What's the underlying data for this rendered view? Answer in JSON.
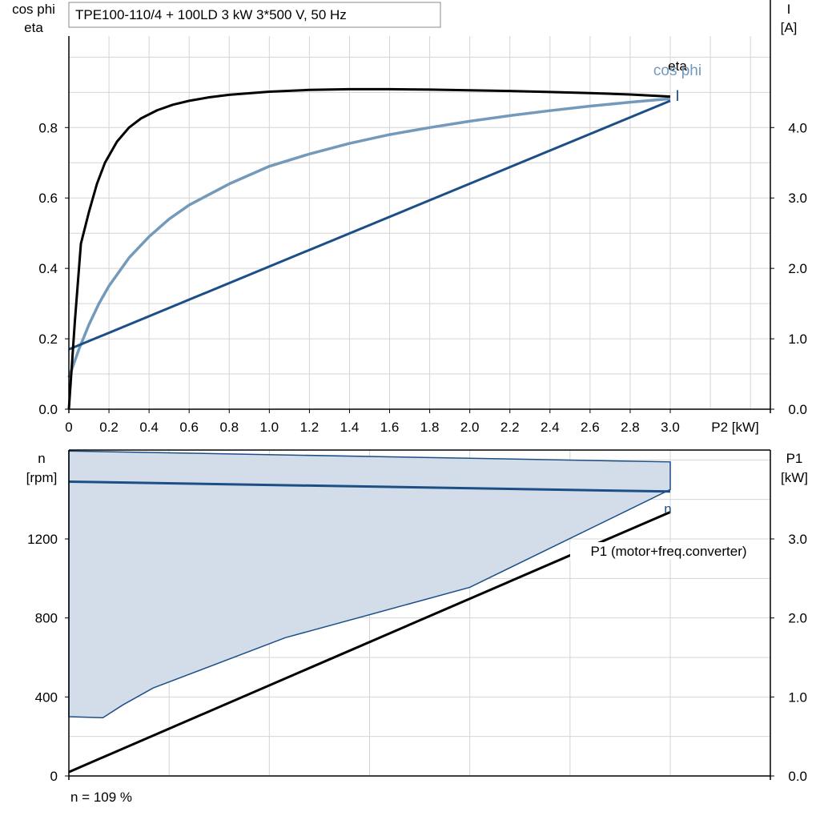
{
  "chart_data": [
    {
      "type": "line",
      "title": "TPE100-110/4 + 100LD   3 kW   3*500 V, 50 Hz",
      "xlabel": "P2 [kW]",
      "xlim": [
        0,
        3.5
      ],
      "x_ticks": [
        "0",
        "0.2",
        "0.4",
        "0.6",
        "0.8",
        "1.0",
        "1.2",
        "1.4",
        "1.6",
        "1.8",
        "2.0",
        "2.2",
        "2.4",
        "2.6",
        "2.8",
        "3.0"
      ],
      "y_left": {
        "label_line1": "cos phi",
        "label_line2": "eta",
        "ylim": [
          0,
          1.06
        ],
        "ticks": [
          "0.0",
          "0.2",
          "0.4",
          "0.6",
          "0.8"
        ]
      },
      "y_right": {
        "label_line1": "I",
        "label_line2": "[A]",
        "ylim": [
          0,
          5.3
        ],
        "ticks": [
          "0.0",
          "1.0",
          "2.0",
          "3.0",
          "4.0"
        ]
      },
      "series": [
        {
          "name": "eta",
          "axis": "left",
          "color": "#000000",
          "x": [
            0,
            0.03,
            0.06,
            0.1,
            0.14,
            0.18,
            0.24,
            0.3,
            0.36,
            0.44,
            0.52,
            0.6,
            0.7,
            0.8,
            1.0,
            1.2,
            1.4,
            1.6,
            1.8,
            2.0,
            2.2,
            2.4,
            2.6,
            2.8,
            3.0
          ],
          "y": [
            0,
            0.25,
            0.47,
            0.56,
            0.64,
            0.7,
            0.76,
            0.8,
            0.826,
            0.849,
            0.865,
            0.876,
            0.886,
            0.893,
            0.902,
            0.907,
            0.909,
            0.909,
            0.908,
            0.906,
            0.904,
            0.901,
            0.898,
            0.894,
            0.888
          ]
        },
        {
          "name": "cos phi",
          "axis": "left",
          "color": "#7399bb",
          "x": [
            0,
            0.05,
            0.1,
            0.15,
            0.2,
            0.3,
            0.4,
            0.5,
            0.6,
            0.8,
            1.0,
            1.2,
            1.4,
            1.6,
            1.8,
            2.0,
            2.2,
            2.4,
            2.6,
            2.8,
            3.0
          ],
          "y": [
            0.09,
            0.17,
            0.24,
            0.3,
            0.35,
            0.43,
            0.49,
            0.54,
            0.58,
            0.64,
            0.69,
            0.725,
            0.755,
            0.78,
            0.8,
            0.818,
            0.834,
            0.848,
            0.861,
            0.872,
            0.882
          ]
        },
        {
          "name": "I",
          "axis": "right",
          "color": "#1b4f86",
          "x": [
            0,
            3.0
          ],
          "y": [
            0.85,
            4.38
          ]
        }
      ]
    },
    {
      "type": "line",
      "x_shared_with_chart": 0,
      "xlim": [
        0,
        3.5
      ],
      "y_left": {
        "label_line1": "n",
        "label_line2": "[rpm]",
        "ylim": [
          0,
          1650
        ],
        "ticks": [
          "0",
          "400",
          "800",
          "1200"
        ]
      },
      "y_right": {
        "label_line1": "P1",
        "label_line2": "[kW]",
        "ylim": [
          0,
          4.125
        ],
        "ticks": [
          "0.0",
          "1.0",
          "2.0",
          "3.0"
        ]
      },
      "operating_area": {
        "axis": "left",
        "color": "#1b4f86",
        "fill": "#d3dde9",
        "x": [
          0,
          0.17,
          0.27,
          0.42,
          1.08,
          2.0,
          3.0,
          3.0,
          0
        ],
        "y": [
          300,
          295,
          360,
          445,
          700,
          955,
          1450,
          1590,
          1645
        ]
      },
      "series": [
        {
          "name": "n",
          "axis": "left",
          "color": "#1b4f86",
          "x": [
            0,
            3.0
          ],
          "y": [
            1490,
            1440
          ]
        },
        {
          "name": "P1 (motor+freq.converter)",
          "axis": "right",
          "color": "#000000",
          "x": [
            0,
            3.0
          ],
          "y": [
            0.05,
            3.34
          ]
        }
      ],
      "footnote": "n = 109 %"
    }
  ]
}
